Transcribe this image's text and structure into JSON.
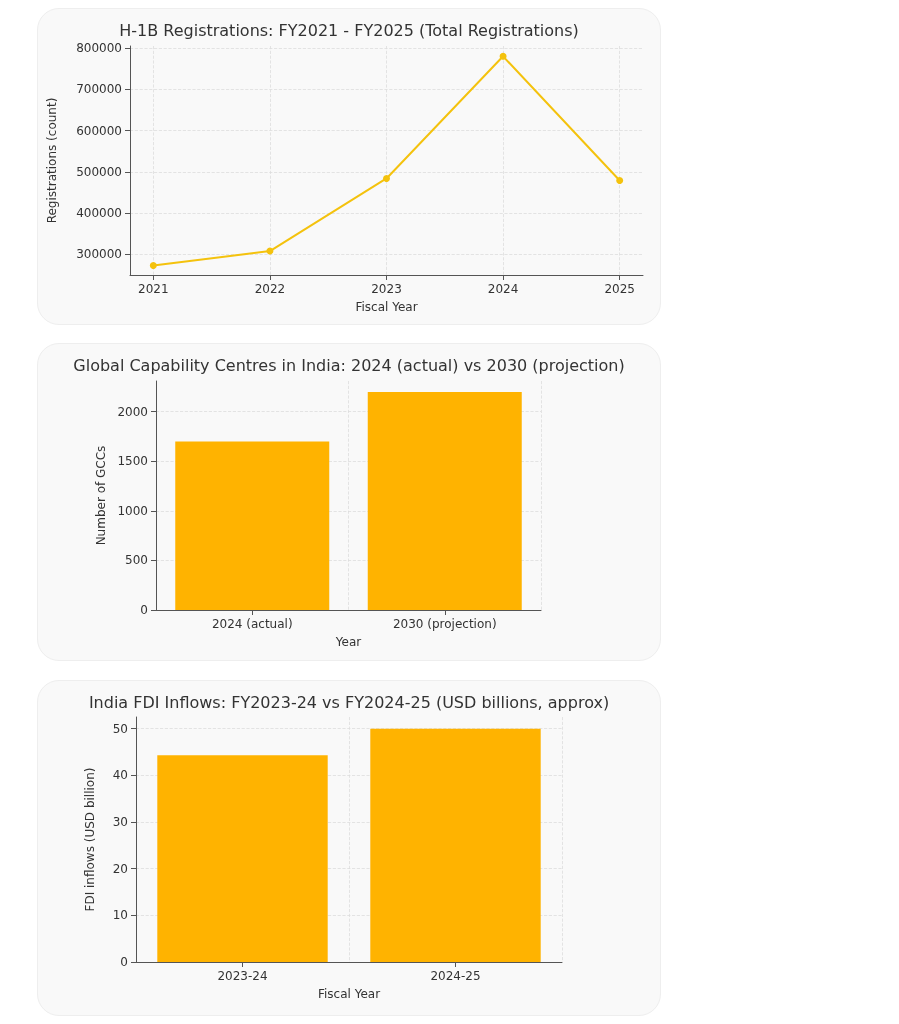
{
  "chart_data": [
    {
      "type": "line",
      "title": "H-1B Registrations: FY2021 - FY2025 (Total Registrations)",
      "xlabel": "Fiscal Year",
      "ylabel": "Registrations (count)",
      "x": [
        2021,
        2022,
        2023,
        2024,
        2025
      ],
      "series": [
        {
          "color": "#f4c20d",
          "values": [
            273000,
            308000,
            484000,
            780000,
            479000
          ]
        }
      ],
      "xlim": [
        2020.8,
        2025.2
      ],
      "xticks": [
        2021,
        2022,
        2023,
        2024,
        2025
      ],
      "ylim": [
        250000,
        805000
      ],
      "yticks": [
        300000,
        400000,
        500000,
        600000,
        700000,
        800000
      ],
      "grid": true,
      "marker": "circle",
      "line_style": "solid"
    },
    {
      "type": "bar",
      "title": "Global Capability Centres in India: 2024 (actual) vs 2030 (projection)",
      "xlabel": "Year",
      "ylabel": "Number of GCCs",
      "categories": [
        "2024 (actual)",
        "2030 (projection)"
      ],
      "series": [
        {
          "color": "#ffb300",
          "values": [
            1700,
            2200
          ]
        }
      ],
      "ylim": [
        0,
        2310
      ],
      "yticks": [
        0,
        500,
        1000,
        1500,
        2000
      ],
      "grid": true
    },
    {
      "type": "bar",
      "title": "India FDI Inflows: FY2023-24 vs FY2024-25 (USD billions, approx)",
      "xlabel": "Fiscal Year",
      "ylabel": "FDI inflows (USD billion)",
      "categories": [
        "2023-24",
        "2024-25"
      ],
      "series": [
        {
          "color": "#ffb300",
          "values": [
            44.3,
            50
          ]
        }
      ],
      "ylim": [
        0,
        52.5
      ],
      "yticks": [
        0,
        10,
        20,
        30,
        40,
        50
      ],
      "grid": true
    }
  ]
}
